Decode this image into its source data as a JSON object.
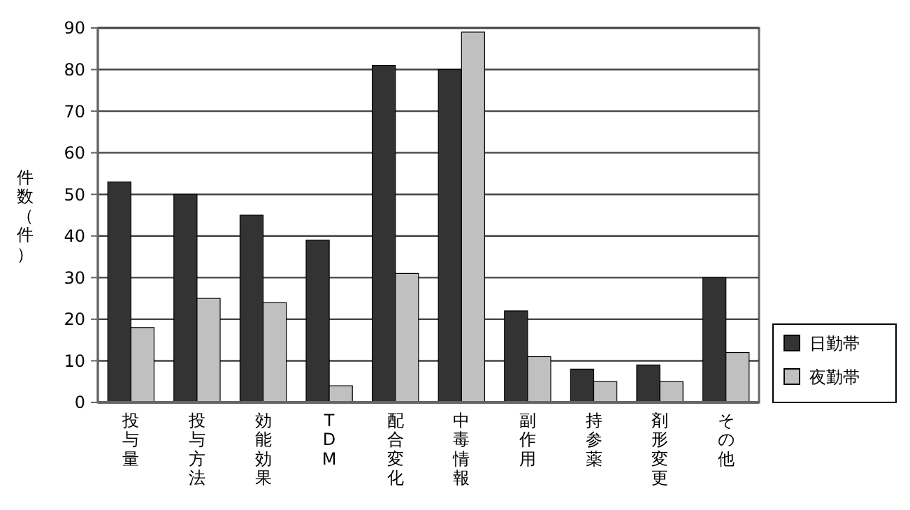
{
  "chart_data": {
    "type": "bar",
    "ylabel": "件数（件）",
    "categories": [
      "投与量",
      "投与方法",
      "効能効果",
      "TDM",
      "配合変化",
      "中毒情報",
      "副作用",
      "持参薬",
      "剤形変更",
      "その他"
    ],
    "series": [
      {
        "name": "日勤帯",
        "color": "#333333",
        "values": [
          53,
          50,
          45,
          39,
          81,
          80,
          22,
          8,
          9,
          30
        ]
      },
      {
        "name": "夜勤帯",
        "color": "#c0c0c0",
        "values": [
          18,
          25,
          24,
          4,
          31,
          89,
          11,
          5,
          5,
          12
        ]
      }
    ],
    "ylim": [
      0,
      90
    ],
    "yticks": [
      0,
      10,
      20,
      30,
      40,
      50,
      60,
      70,
      80,
      90
    ],
    "grid": "y",
    "legend": "bottom right"
  }
}
